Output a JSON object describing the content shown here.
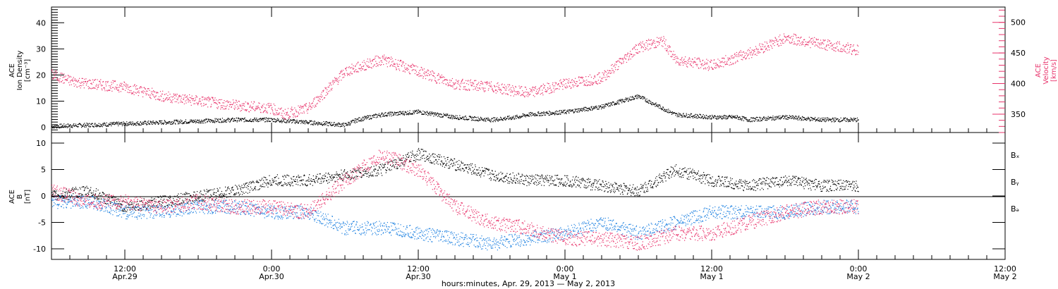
{
  "colors": {
    "black": "#000000",
    "pink": "#e8336b",
    "blue": "#1a7fe0"
  },
  "chart_data": [
    {
      "type": "scatter",
      "panel": "plasma",
      "ylabel_left": [
        "ACE",
        "Ion Density",
        "[cm⁻³]"
      ],
      "ylabel_right": [
        "ACE",
        "Velocity",
        "[km/s]"
      ],
      "ylim": [
        -2,
        46
      ],
      "y2lim": [
        320,
        525
      ],
      "yticks": [
        0,
        10,
        20,
        30,
        40
      ],
      "y2ticks": [
        350,
        400,
        450,
        500
      ],
      "series": [
        {
          "axis": "left",
          "color": "black",
          "x": [
            0,
            6,
            12,
            18,
            24,
            30,
            36,
            42,
            48,
            50,
            54,
            60,
            66,
            72,
            76,
            78,
            84,
            90,
            96,
            102,
            108,
            112,
            114,
            120,
            126,
            132
          ],
          "y": [
            0.5,
            1,
            1.5,
            2,
            2.5,
            3,
            3,
            2,
            1,
            3,
            5,
            6,
            4,
            3,
            4,
            5,
            6,
            8,
            12,
            5,
            4,
            4,
            3,
            4,
            3,
            3
          ]
        },
        {
          "axis": "right",
          "color": "pink",
          "x": [
            0,
            3,
            6,
            12,
            18,
            24,
            30,
            36,
            38,
            42,
            48,
            54,
            60,
            66,
            72,
            78,
            84,
            90,
            96,
            100,
            102,
            108,
            114,
            120,
            126,
            132
          ],
          "y": [
            415,
            405,
            400,
            395,
            380,
            372,
            365,
            360,
            350,
            360,
            420,
            440,
            420,
            400,
            395,
            385,
            400,
            410,
            460,
            470,
            440,
            430,
            450,
            475,
            465,
            455
          ]
        }
      ]
    },
    {
      "type": "scatter",
      "panel": "magnetic-field",
      "ylabel_left": [
        "ACE",
        "B",
        "[nT]"
      ],
      "ylim": [
        -12,
        12
      ],
      "yticks": [
        -10,
        -5,
        0,
        5,
        10
      ],
      "legend": [
        "Bₓ",
        "Bᵧ",
        "Bₔ"
      ],
      "legend_colors": [
        "black",
        "blue",
        "pink"
      ],
      "series": [
        {
          "color": "black",
          "x": [
            0,
            6,
            12,
            18,
            24,
            30,
            36,
            42,
            48,
            54,
            60,
            66,
            72,
            78,
            84,
            90,
            96,
            102,
            108,
            114,
            120,
            126,
            132
          ],
          "y": [
            0,
            1,
            -2,
            -1,
            0,
            1,
            3,
            3,
            4,
            5,
            8,
            6,
            4,
            3,
            3,
            2,
            1,
            5,
            3,
            2,
            3,
            2,
            2
          ]
        },
        {
          "color": "blue",
          "x": [
            0,
            6,
            12,
            18,
            24,
            30,
            36,
            42,
            48,
            54,
            60,
            66,
            72,
            78,
            84,
            90,
            96,
            102,
            108,
            114,
            120,
            126,
            132
          ],
          "y": [
            -1,
            -1,
            -3,
            -3,
            -2,
            -2,
            -3,
            -3,
            -6,
            -6,
            -7,
            -8,
            -9,
            -8,
            -7,
            -5,
            -7,
            -5,
            -3,
            -3,
            -3,
            -2,
            -2
          ]
        },
        {
          "color": "pink",
          "x": [
            0,
            6,
            12,
            18,
            24,
            30,
            36,
            42,
            48,
            54,
            60,
            66,
            72,
            78,
            84,
            90,
            96,
            102,
            108,
            114,
            120,
            126,
            132
          ],
          "y": [
            1,
            -1,
            -1,
            -2,
            -1,
            -2,
            -2,
            -3,
            3,
            8,
            5,
            -2,
            -5,
            -6,
            -8,
            -8,
            -9,
            -7,
            -7,
            -5,
            -3,
            -2,
            -2
          ]
        }
      ]
    }
  ],
  "time_axis": {
    "xlim": [
      0,
      156
    ],
    "ticks": [
      {
        "hours": 12,
        "time": "12:00",
        "date": "Apr.29"
      },
      {
        "hours": 36,
        "time": "0:00",
        "date": "Apr.30"
      },
      {
        "hours": 60,
        "time": "12:00",
        "date": "Apr.30"
      },
      {
        "hours": 84,
        "time": "0:00",
        "date": "May 1"
      },
      {
        "hours": 108,
        "time": "12:00",
        "date": "May 1"
      },
      {
        "hours": 132,
        "time": "0:00",
        "date": "May 2"
      },
      {
        "hours": 156,
        "time": "12:00",
        "date": "May 2"
      }
    ],
    "label": "hours:minutes, Apr. 29, 2013 — May  2, 2013"
  }
}
